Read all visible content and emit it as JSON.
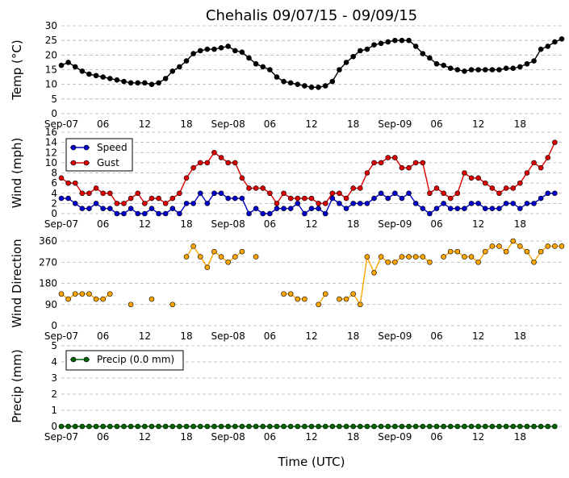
{
  "chart_data": {
    "type": "line",
    "title": "Chehalis 09/07/15 - 09/09/15",
    "xlabel": "Time (UTC)",
    "x_tick_labels": [
      "Sep-07",
      "06",
      "12",
      "18",
      "Sep-08",
      "06",
      "12",
      "18",
      "Sep-09",
      "06",
      "12",
      "18"
    ],
    "x_tick_hours": [
      0,
      6,
      12,
      18,
      24,
      30,
      36,
      42,
      48,
      54,
      60,
      66
    ],
    "xlim": [
      0,
      72
    ],
    "grid": "dashed-horizontal",
    "panels": [
      {
        "ylabel": "Temp (°C)",
        "ylim": [
          0,
          30
        ],
        "yticks": [
          0,
          5,
          10,
          15,
          20,
          25,
          30
        ],
        "series": [
          {
            "color": "#000000",
            "marker": "circle",
            "line": true,
            "values": [
              16.5,
              17.5,
              16,
              14.5,
              13.5,
              13,
              12.5,
              12,
              11.5,
              11,
              10.5,
              10.5,
              10.5,
              10,
              10.5,
              12,
              14.5,
              16,
              18,
              20.5,
              21.5,
              22,
              22,
              22.5,
              23,
              21.5,
              21,
              19,
              17,
              16,
              15,
              12.5,
              11,
              10.5,
              10,
              9.5,
              9,
              9,
              9.5,
              11,
              15,
              17.5,
              19.5,
              21.5,
              22,
              23.5,
              24,
              24.5,
              25,
              25,
              25,
              23,
              20.5,
              19,
              17,
              16.5,
              15.5,
              15,
              14.5,
              15,
              15,
              15,
              15,
              15,
              15.5,
              15.5,
              16,
              17,
              18,
              22,
              23,
              24.5,
              25.5
            ]
          }
        ]
      },
      {
        "ylabel": "Wind (mph)",
        "ylim": [
          0,
          16
        ],
        "yticks": [
          0,
          2,
          4,
          6,
          8,
          10,
          12,
          14,
          16
        ],
        "legend": "upper-left",
        "series": [
          {
            "name": "Speed",
            "color": "#0000cc",
            "marker": "circle",
            "line": true,
            "values": [
              3,
              3,
              2,
              1,
              1,
              2,
              1,
              1,
              0,
              0,
              1,
              0,
              0,
              1,
              0,
              0,
              1,
              0,
              2,
              2,
              4,
              2,
              4,
              4,
              3,
              3,
              3,
              0,
              1,
              0,
              0,
              1,
              1,
              1,
              2,
              0,
              1,
              1,
              0,
              3,
              2,
              1,
              2,
              2,
              2,
              3,
              4,
              3,
              4,
              3,
              4,
              2,
              1,
              0,
              1,
              2,
              1,
              1,
              1,
              2,
              2,
              1,
              1,
              1,
              2,
              2,
              1,
              2,
              2,
              3,
              4,
              4
            ]
          },
          {
            "name": "Gust",
            "color": "#dd0000",
            "marker": "circle",
            "line": true,
            "values": [
              7,
              6,
              6,
              4,
              4,
              5,
              4,
              4,
              2,
              2,
              3,
              4,
              2,
              3,
              3,
              2,
              3,
              4,
              7,
              9,
              10,
              10,
              12,
              11,
              10,
              10,
              7,
              5,
              5,
              5,
              4,
              2,
              4,
              3,
              3,
              3,
              3,
              2,
              2,
              4,
              4,
              3,
              5,
              5,
              8,
              10,
              10,
              11,
              11,
              9,
              9,
              10,
              10,
              4,
              5,
              4,
              3,
              4,
              8,
              7,
              7,
              6,
              5,
              4,
              5,
              5,
              6,
              8,
              10,
              9,
              11,
              14
            ]
          }
        ]
      },
      {
        "ylabel": "Wind Direction",
        "ylim": [
          0,
          360
        ],
        "yticks": [
          0,
          90,
          180,
          270,
          360
        ],
        "series": [
          {
            "color": "#ffa500",
            "marker": "circle",
            "line": "between-consecutive",
            "values": [
              135,
              113,
              135,
              135,
              135,
              113,
              113,
              135,
              null,
              null,
              90,
              null,
              null,
              113,
              null,
              null,
              90,
              null,
              293,
              338,
              293,
              248,
              315,
              293,
              270,
              293,
              315,
              null,
              293,
              null,
              null,
              null,
              135,
              135,
              113,
              113,
              null,
              90,
              135,
              null,
              113,
              113,
              135,
              90,
              293,
              225,
              293,
              270,
              270,
              293,
              293,
              293,
              293,
              270,
              null,
              293,
              315,
              315,
              293,
              293,
              270,
              315,
              338,
              338,
              315,
              360,
              338,
              315,
              270,
              315,
              338,
              338,
              338
            ]
          }
        ]
      },
      {
        "ylabel": "Precip (mm)",
        "ylim": [
          0,
          5
        ],
        "yticks": [
          0,
          1,
          2,
          3,
          4,
          5
        ],
        "legend": "upper-left",
        "series": [
          {
            "name": "Precip (0.0 mm)",
            "color": "#006400",
            "marker": "circle",
            "line": true,
            "constant": 0,
            "count": 72
          }
        ]
      }
    ]
  }
}
